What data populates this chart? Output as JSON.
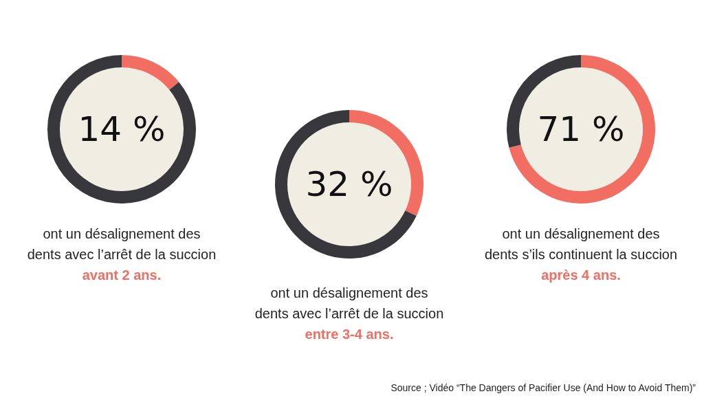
{
  "chart_data": [
    {
      "type": "donut",
      "categories": [
        null,
        null
      ],
      "values": [
        14,
        86
      ],
      "colors": [
        "#f26d62",
        "#38373c"
      ],
      "value_labels": [
        "14 %",
        null
      ],
      "annotations": [
        "ont un désalignement des",
        "dents avec l’arrêt de la succion",
        "avant 2 ans."
      ]
    },
    {
      "type": "donut",
      "categories": [
        null,
        null
      ],
      "values": [
        32,
        68
      ],
      "colors": [
        "#f26d62",
        "#38373c"
      ],
      "value_labels": [
        "32 %",
        null
      ],
      "annotations": [
        "ont un désalignement des",
        "dents avec l’arrêt de la succion",
        "entre 3-4 ans."
      ]
    },
    {
      "type": "donut",
      "categories": [
        null,
        null
      ],
      "values": [
        71,
        29
      ],
      "colors": [
        "#f26d62",
        "#38373c"
      ],
      "value_labels": [
        "71 %",
        null
      ],
      "annotations": [
        "ont un désalignement des",
        "dents s’ils continuent la succion",
        "après 4 ans.",
        "Source ; Vidéo “The Dangers of Pacifier Use (And How to Avoid Them)”"
      ]
    }
  ]
}
